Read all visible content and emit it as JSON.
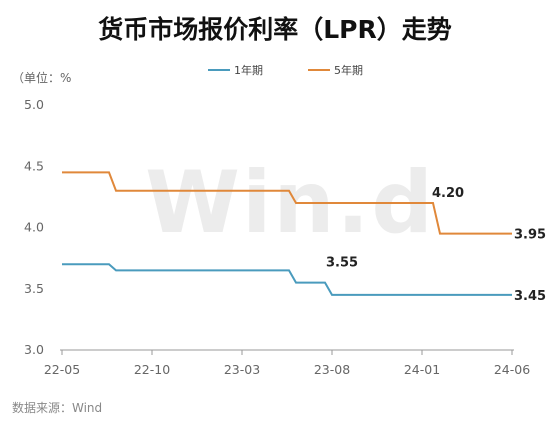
{
  "chart_data": {
    "type": "line",
    "title": "货币市场报价利率（LPR）走势",
    "unit_label": "（单位：%",
    "ylim": [
      3.0,
      5.0
    ],
    "yticks": [
      "5.0",
      "4.5",
      "4.0",
      "3.5",
      "3.0"
    ],
    "xticks": [
      "22-05",
      "22-10",
      "23-03",
      "23-08",
      "24-01",
      "24-06"
    ],
    "legend_position": "top",
    "grid": false,
    "series": [
      {
        "name": "1年期",
        "color": "#4a9bbd",
        "points": [
          {
            "x": "22-05",
            "y": 3.7
          },
          {
            "x": "22-08",
            "y": 3.65
          },
          {
            "x": "23-06",
            "y": 3.55
          },
          {
            "x": "23-08",
            "y": 3.45
          },
          {
            "x": "24-06",
            "y": 3.45
          }
        ]
      },
      {
        "name": "5年期",
        "color": "#e0883a",
        "points": [
          {
            "x": "22-05",
            "y": 4.45
          },
          {
            "x": "22-08",
            "y": 4.3
          },
          {
            "x": "23-06",
            "y": 4.2
          },
          {
            "x": "24-02",
            "y": 3.95
          },
          {
            "x": "24-06",
            "y": 3.95
          }
        ]
      }
    ],
    "annotations": [
      {
        "text": "4.20",
        "x": "24-01",
        "y": 4.2,
        "series": "5年期"
      },
      {
        "text": "3.95",
        "x": "24-06",
        "y": 3.95,
        "series": "5年期"
      },
      {
        "text": "3.55",
        "x": "23-08",
        "y": 3.55,
        "series": "1年期"
      },
      {
        "text": "3.45",
        "x": "24-06",
        "y": 3.45,
        "series": "1年期"
      }
    ],
    "source": "数据来源：Wind",
    "watermark": "Win.d"
  }
}
